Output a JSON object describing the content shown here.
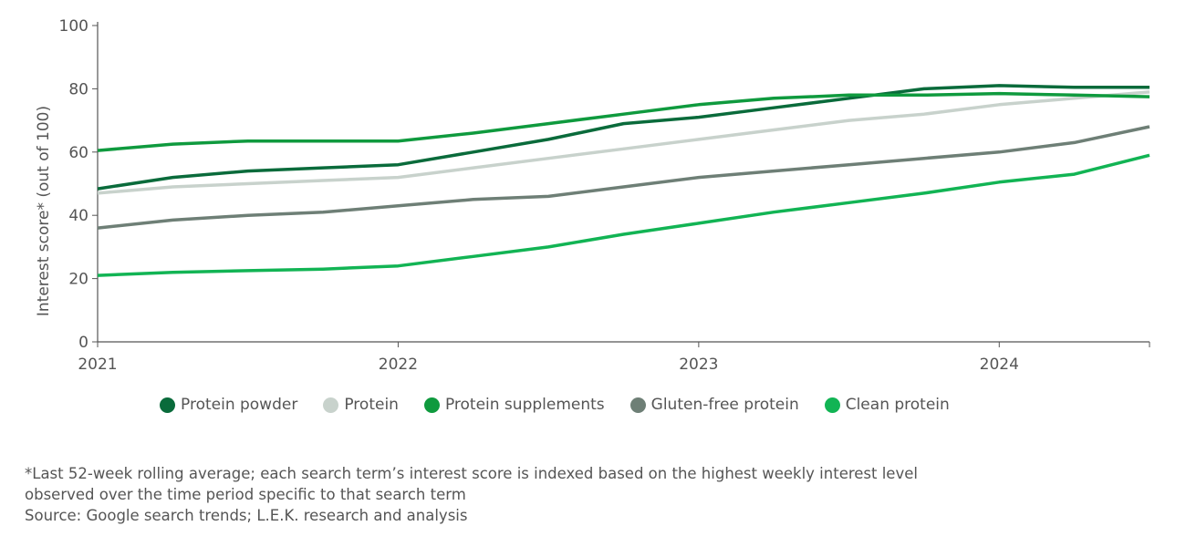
{
  "chart_data": {
    "type": "line",
    "ylabel": "Interest score* (out of 100)",
    "xlabel": "",
    "ylim": [
      0,
      100
    ],
    "xlim": [
      2021,
      2024.5
    ],
    "yticks": [
      0,
      20,
      40,
      60,
      80,
      100
    ],
    "xticks": [
      "2021",
      "2022",
      "2023",
      "2024"
    ],
    "grid": false,
    "legend": "bottom",
    "x": [
      2021,
      2021.25,
      2021.5,
      2021.75,
      2022,
      2022.25,
      2022.5,
      2022.75,
      2023,
      2023.25,
      2023.5,
      2023.75,
      2024,
      2024.25,
      2024.5
    ],
    "series": [
      {
        "name": "Protein powder",
        "color": "#0a6b3b",
        "values": [
          48.4,
          52,
          54,
          55,
          56,
          60,
          64,
          69,
          71,
          74,
          77,
          80,
          81,
          80.5,
          80.5
        ]
      },
      {
        "name": "Protein",
        "color": "#c8d2cc",
        "values": [
          47,
          49,
          50,
          51,
          52,
          55,
          58,
          61,
          64,
          67,
          70,
          72,
          75,
          77,
          79
        ]
      },
      {
        "name": "Protein supplements",
        "color": "#0f9a3e",
        "values": [
          60.5,
          62.5,
          63.5,
          63.5,
          63.5,
          66,
          69,
          72,
          75,
          77,
          78,
          78,
          78.5,
          78,
          77.5
        ]
      },
      {
        "name": "Gluten-free protein",
        "color": "#6e7f76",
        "values": [
          36,
          38.5,
          40,
          41,
          43,
          45,
          46,
          49,
          52,
          54,
          56,
          58,
          60,
          63,
          68
        ]
      },
      {
        "name": "Clean protein",
        "color": "#12b454",
        "values": [
          21,
          22,
          22.5,
          23,
          24,
          27,
          30,
          34,
          37.5,
          41,
          44,
          47,
          50.5,
          53,
          59
        ]
      }
    ]
  },
  "notes": [
    "*Last 52-week rolling average; each search term’s interest score is indexed based on the highest weekly interest level",
    "observed over the time period specific to that search term",
    "Source: Google search trends; L.E.K. research and analysis"
  ]
}
